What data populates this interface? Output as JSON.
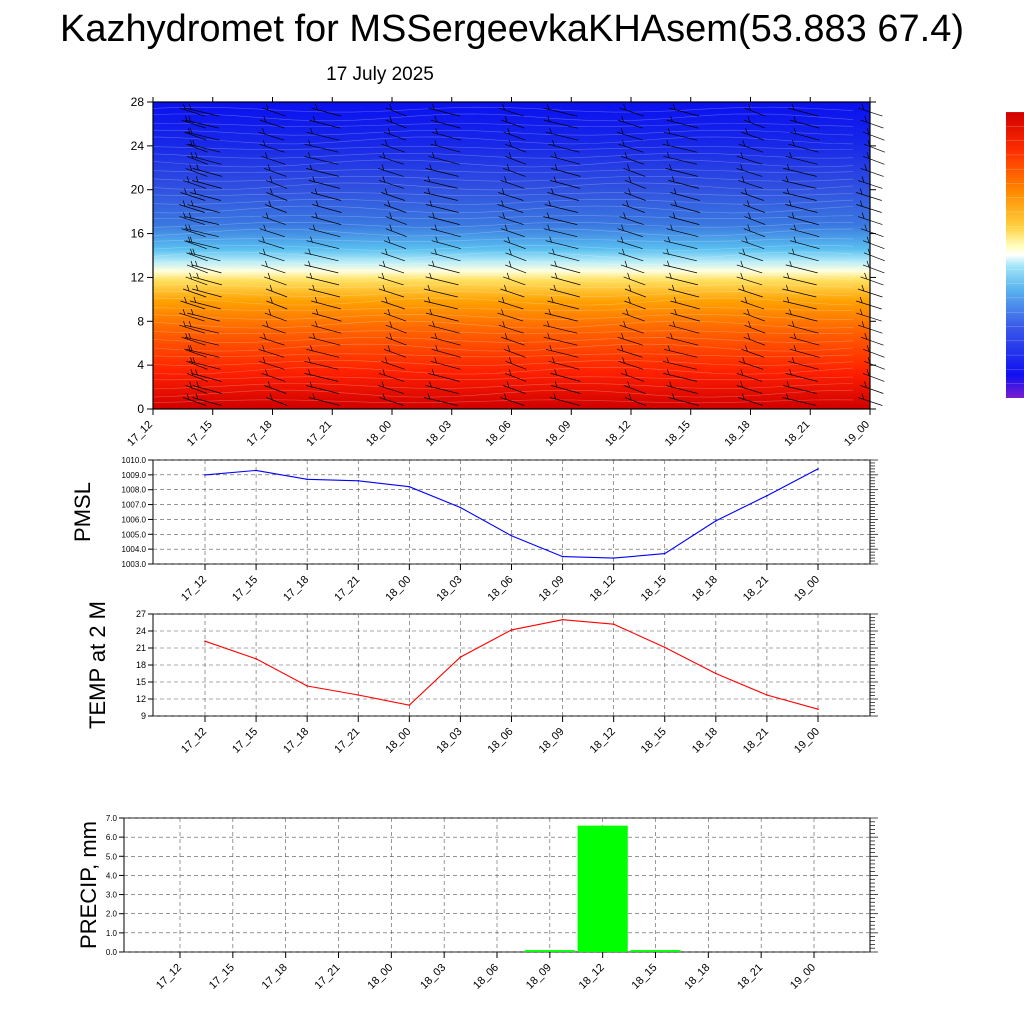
{
  "header": {
    "title": "Kazhydromet for MSSergeevkaKHAsem(53.883 67.4)",
    "date": "17 July 2025"
  },
  "colors": {
    "pmsl_line": "#0000ff",
    "temp_line": "#ff0000",
    "precip_bar": "#00ff00",
    "wind_barb": "#000000"
  },
  "chart_data": [
    {
      "type": "heatmap",
      "title": "",
      "xlabel": "",
      "ylabel": "",
      "categories": [
        "17_12",
        "17_15",
        "17_18",
        "17_21",
        "18_00",
        "18_03",
        "18_06",
        "18_09",
        "18_12",
        "18_15",
        "18_18",
        "18_21",
        "19_00"
      ],
      "ylim": [
        0,
        28
      ],
      "yticks": [
        0,
        4,
        8,
        12,
        16,
        20,
        24,
        28
      ],
      "colorbar": [
        "#7a1fd0",
        "#1010f0",
        "#3a5ae8",
        "#5ab4ee",
        "#a0e4f8",
        "#ffffc0",
        "#ffd040",
        "#ff8a00",
        "#ff3000",
        "#d00000"
      ],
      "overlay": "wind barbs"
    },
    {
      "type": "line",
      "ylabel": "PMSL",
      "categories": [
        "17_12",
        "17_15",
        "17_18",
        "17_21",
        "18_00",
        "18_03",
        "18_06",
        "18_09",
        "18_12",
        "18_15",
        "18_18",
        "18_21",
        "19_00"
      ],
      "values": [
        1009.0,
        1009.3,
        1008.7,
        1008.6,
        1008.2,
        1006.8,
        1004.9,
        1003.5,
        1003.4,
        1003.7,
        1005.9,
        1007.6,
        1009.4
      ],
      "ylim": [
        1003.0,
        1010.0
      ],
      "yticks": [
        "1003.0",
        "1004.0",
        "1005.0",
        "1006.0",
        "1007.0",
        "1008.0",
        "1009.0",
        "1010.0"
      ],
      "grid": true
    },
    {
      "type": "line",
      "ylabel": "TEMP at 2 M",
      "categories": [
        "17_12",
        "17_15",
        "17_18",
        "17_21",
        "18_00",
        "18_03",
        "18_06",
        "18_09",
        "18_12",
        "18_15",
        "18_18",
        "18_21",
        "19_00"
      ],
      "values": [
        22.2,
        19.1,
        14.3,
        12.7,
        10.9,
        19.4,
        24.2,
        26.0,
        25.2,
        21.1,
        16.5,
        12.7,
        10.2
      ],
      "ylim": [
        9,
        27
      ],
      "yticks": [
        "9",
        "12",
        "15",
        "18",
        "21",
        "24",
        "27"
      ],
      "grid": true
    },
    {
      "type": "bar",
      "ylabel": "PRECIP, mm",
      "categories": [
        "17_12",
        "17_15",
        "17_18",
        "17_21",
        "18_00",
        "18_03",
        "18_06",
        "18_09",
        "18_12",
        "18_15",
        "18_18",
        "18_21",
        "19_00"
      ],
      "values": [
        0,
        0,
        0,
        0,
        0,
        0,
        0,
        0.1,
        6.6,
        0.1,
        0,
        0,
        0
      ],
      "ylim": [
        0,
        7.0
      ],
      "yticks": [
        "0.0",
        "1.0",
        "2.0",
        "3.0",
        "4.0",
        "5.0",
        "6.0",
        "7.0"
      ],
      "grid": true
    }
  ]
}
